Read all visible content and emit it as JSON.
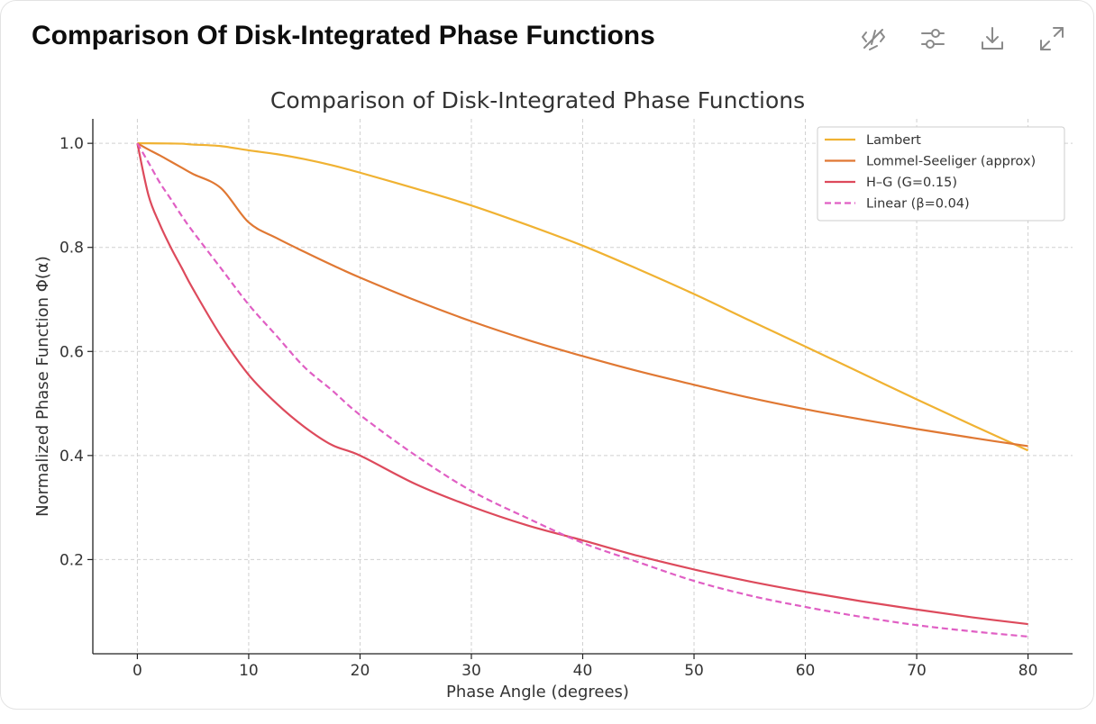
{
  "header": {
    "title": "Comparison Of Disk-Integrated Phase Functions",
    "tools": [
      {
        "name": "hide-code-icon"
      },
      {
        "name": "settings-sliders-icon"
      },
      {
        "name": "download-icon"
      },
      {
        "name": "expand-icon"
      }
    ]
  },
  "chart_data": {
    "type": "line",
    "title": "Comparison of Disk-Integrated Phase Functions",
    "xlabel": "Phase Angle (degrees)",
    "ylabel": "Normalized Phase Function Φ(α)",
    "xlim": [
      -4,
      84
    ],
    "ylim": [
      0.019,
      1.047
    ],
    "xticks": [
      0,
      10,
      20,
      30,
      40,
      50,
      60,
      70,
      80
    ],
    "xtick_labels": [
      "0",
      "10",
      "20",
      "30",
      "40",
      "50",
      "60",
      "70",
      "80"
    ],
    "yticks": [
      0.2,
      0.4,
      0.6,
      0.8,
      1.0
    ],
    "ytick_labels": [
      "0.2",
      "0.4",
      "0.6",
      "0.8",
      "1.0"
    ],
    "grid": true,
    "legend_position": "top-right",
    "x": [
      0,
      1,
      2,
      3,
      4,
      5,
      7.5,
      10,
      12.5,
      15,
      17.5,
      20,
      25,
      30,
      35,
      40,
      45,
      50,
      55,
      60,
      65,
      70,
      75,
      80
    ],
    "series": [
      {
        "name": "Lambert",
        "color": "#f0b232",
        "dash": "solid",
        "values": [
          1.0,
          1.0,
          0.9999,
          0.9996,
          0.9993,
          0.9976,
          0.9946,
          0.9865,
          0.9793,
          0.9696,
          0.9577,
          0.9436,
          0.913,
          0.8806,
          0.8433,
          0.8033,
          0.758,
          0.7103,
          0.6595,
          0.6094,
          0.5587,
          0.5079,
          0.4583,
          0.4098
        ]
      },
      {
        "name": "Lommel-Seeliger (approx)",
        "color": "#e07833",
        "dash": "solid",
        "values": [
          1.0,
          0.988,
          0.977,
          0.965,
          0.953,
          0.941,
          0.914,
          0.848,
          0.818,
          0.7915,
          0.766,
          0.742,
          0.698,
          0.658,
          0.6225,
          0.591,
          0.562,
          0.536,
          0.511,
          0.489,
          0.4695,
          0.451,
          0.434,
          0.418
        ]
      },
      {
        "name": "H–G (G=0.15)",
        "color": "#dd4a5c",
        "dash": "solid",
        "values": [
          1.0,
          0.9,
          0.845,
          0.8,
          0.76,
          0.72,
          0.63,
          0.555,
          0.5,
          0.455,
          0.42,
          0.4,
          0.345,
          0.302,
          0.266,
          0.237,
          0.207,
          0.181,
          0.158,
          0.138,
          0.12,
          0.104,
          0.089,
          0.076
        ]
      },
      {
        "name": "Linear (β=0.04)",
        "color": "#e05fc4",
        "dash": "dashed",
        "values": [
          1.0,
          0.963,
          0.925,
          0.893,
          0.86,
          0.83,
          0.76,
          0.69,
          0.63,
          0.57,
          0.525,
          0.478,
          0.4,
          0.332,
          0.28,
          0.232,
          0.195,
          0.159,
          0.131,
          0.109,
          0.09,
          0.074,
          0.062,
          0.052
        ]
      }
    ]
  }
}
